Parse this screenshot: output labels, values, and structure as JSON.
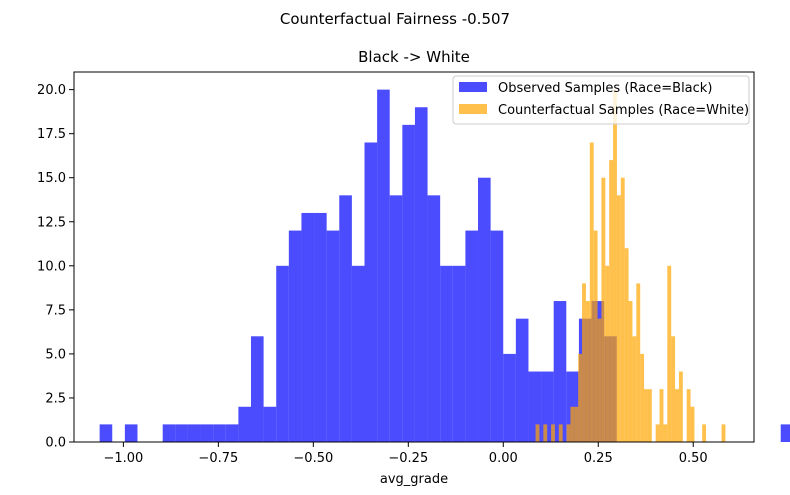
{
  "figure": {
    "suptitle": "Counterfactual Fairness -0.507"
  },
  "chart_data": {
    "type": "histogram",
    "title": "Black -> White",
    "xlabel": "avg_grade",
    "ylabel": "",
    "xlim": [
      -1.13,
      0.66
    ],
    "ylim": [
      0,
      21
    ],
    "xticks": [
      -1.0,
      -0.75,
      -0.5,
      -0.25,
      0.0,
      0.25,
      0.5
    ],
    "xtick_labels": [
      "−1.00",
      "−0.75",
      "−0.50",
      "−0.25",
      "0.00",
      "0.25",
      "0.50"
    ],
    "yticks": [
      0.0,
      2.5,
      5.0,
      7.5,
      10.0,
      12.5,
      15.0,
      17.5,
      20.0
    ],
    "ytick_labels": [
      "0.0",
      "2.5",
      "5.0",
      "7.5",
      "10.0",
      "12.5",
      "15.0",
      "17.5",
      "20.0"
    ],
    "grid": false,
    "legend_position": "top-right",
    "series": [
      {
        "name": "Observed Samples (Race=Black)",
        "color": "#0000ff",
        "alpha": 0.7,
        "bin_start": -1.0625,
        "bin_width": 0.0332,
        "counts": [
          1,
          0,
          1,
          0,
          0,
          1,
          1,
          1,
          1,
          1,
          1,
          2,
          6,
          2,
          10,
          12,
          13,
          13,
          12,
          14,
          10,
          17,
          20,
          14,
          18,
          19,
          14,
          10,
          10,
          12,
          15,
          12,
          5,
          7,
          4,
          4,
          8,
          4,
          7,
          8,
          6,
          0,
          0,
          0,
          0,
          0,
          0,
          0,
          0,
          0,
          0,
          0,
          0,
          0,
          1,
          1
        ]
      },
      {
        "name": "Counterfactual Samples (Race=White)",
        "color": "#ffa500",
        "alpha": 0.7,
        "bin_start": 0.085,
        "bin_width": 0.0102,
        "counts": [
          1,
          0,
          1,
          0,
          1,
          0,
          1,
          0,
          1,
          2,
          2,
          5,
          9,
          8,
          17,
          12,
          7,
          15,
          10,
          16,
          20,
          14,
          15,
          11,
          8,
          6,
          9,
          5,
          3,
          3,
          0,
          1,
          3,
          1,
          10,
          6,
          3,
          4,
          0,
          3,
          2,
          0,
          0,
          1,
          0,
          0,
          0,
          0,
          1,
          0,
          0,
          0
        ]
      }
    ]
  }
}
